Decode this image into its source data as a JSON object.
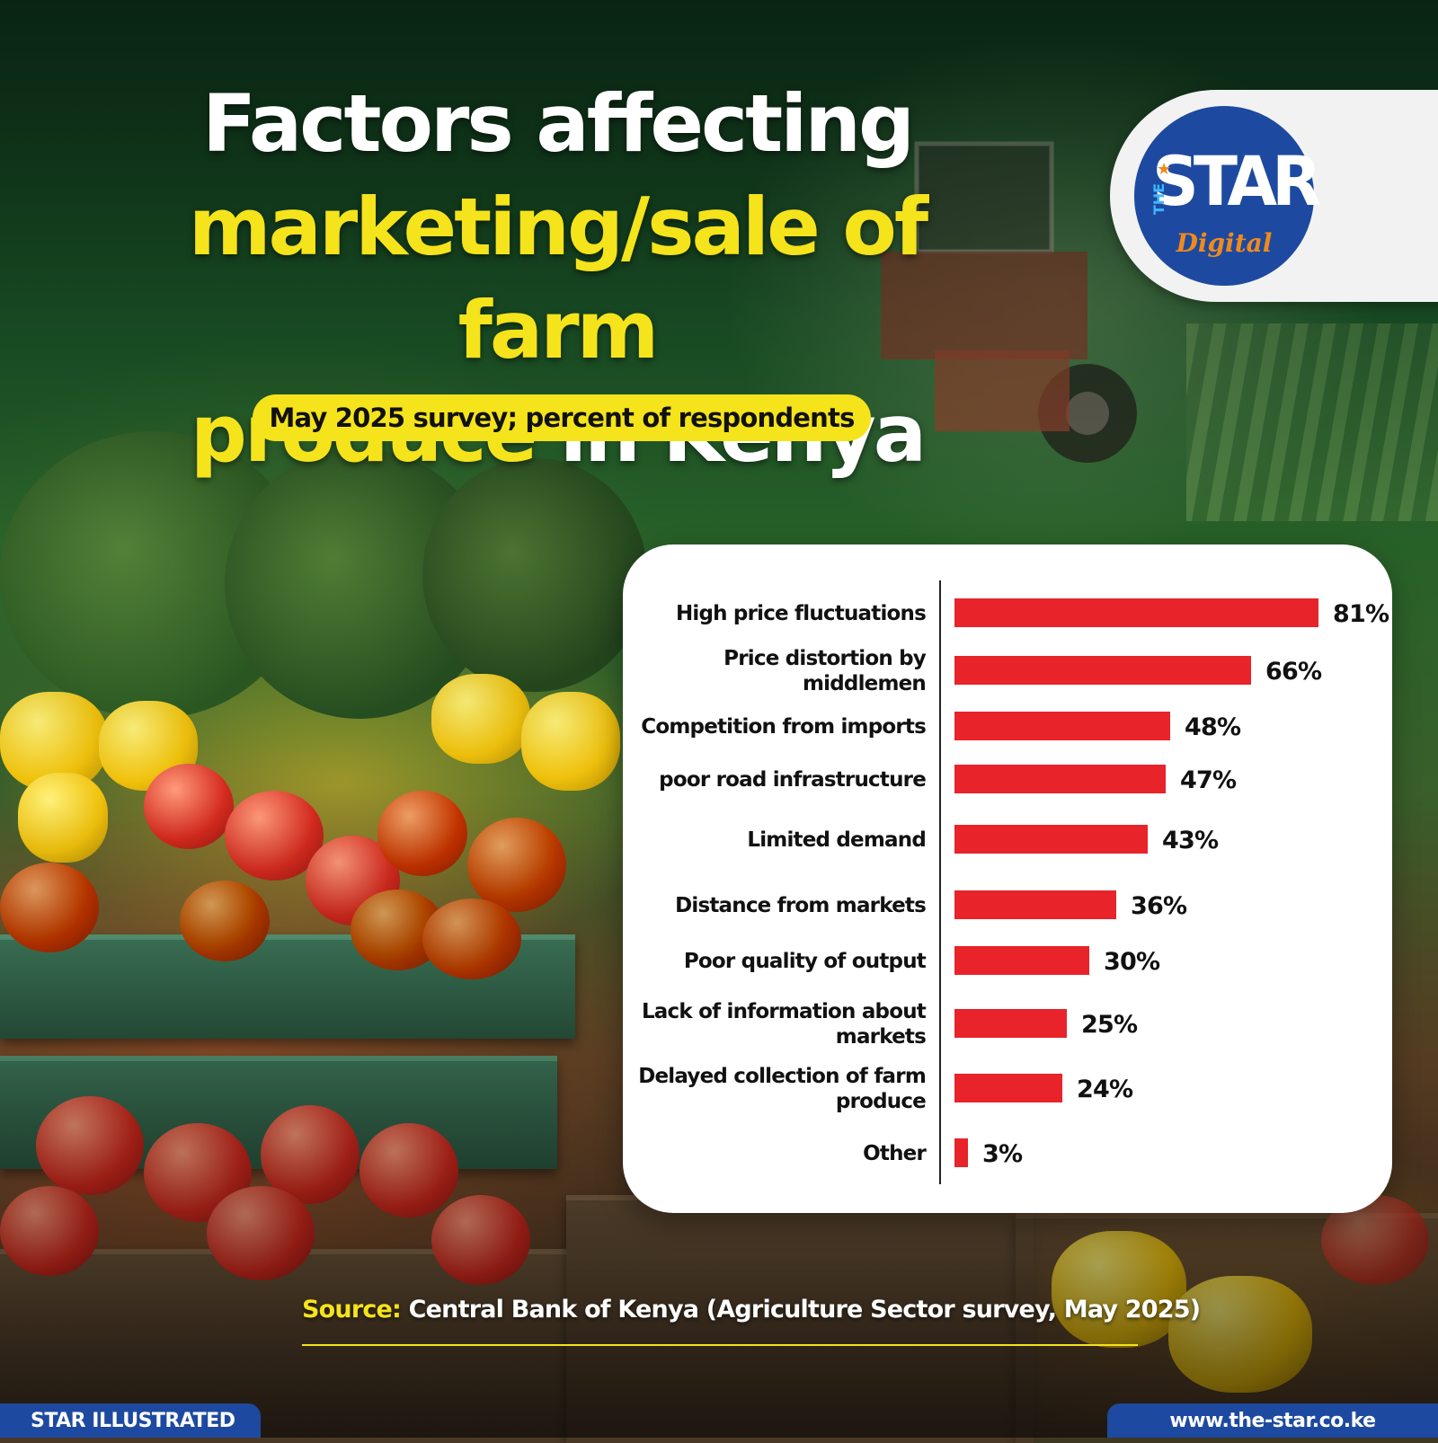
{
  "title": {
    "line1": "Factors affecting",
    "line2": "marketing/sale of farm",
    "line3_yellow": "produce",
    "line3_white": " in Kenya"
  },
  "subtitle": "May 2025 survey; percent of respondents",
  "logo": {
    "the": "THE",
    "star": "STAR",
    "digital": "Digital"
  },
  "colors": {
    "bar": "#e8232a",
    "accent_yellow": "#f5e31b",
    "brand_blue": "#1d4aa0",
    "brand_orange": "#f08a1c"
  },
  "chart_data": {
    "type": "bar",
    "orientation": "horizontal",
    "categories": [
      [
        "High price fluctuations"
      ],
      [
        "Price distortion by",
        "middlemen"
      ],
      [
        "Competition from imports"
      ],
      [
        "poor road infrastructure"
      ],
      [
        "Limited demand"
      ],
      [
        "Distance from markets"
      ],
      [
        "Poor quality of output"
      ],
      [
        "Lack of information about",
        "markets"
      ],
      [
        "Delayed collection of farm",
        "produce"
      ],
      [
        "Other"
      ]
    ],
    "values": [
      81,
      66,
      48,
      47,
      43,
      36,
      30,
      25,
      24,
      3
    ],
    "value_labels": [
      "81%",
      "66%",
      "48%",
      "47%",
      "43%",
      "36%",
      "30%",
      "25%",
      "24%",
      "3%"
    ],
    "unit": "%"
  },
  "source": {
    "label": "Source:",
    "text": " Central Bank of Kenya (Agriculture Sector survey, May 2025)"
  },
  "footer": {
    "left": "STAR ILLUSTRATED",
    "right": "www.the-star.co.ke"
  }
}
